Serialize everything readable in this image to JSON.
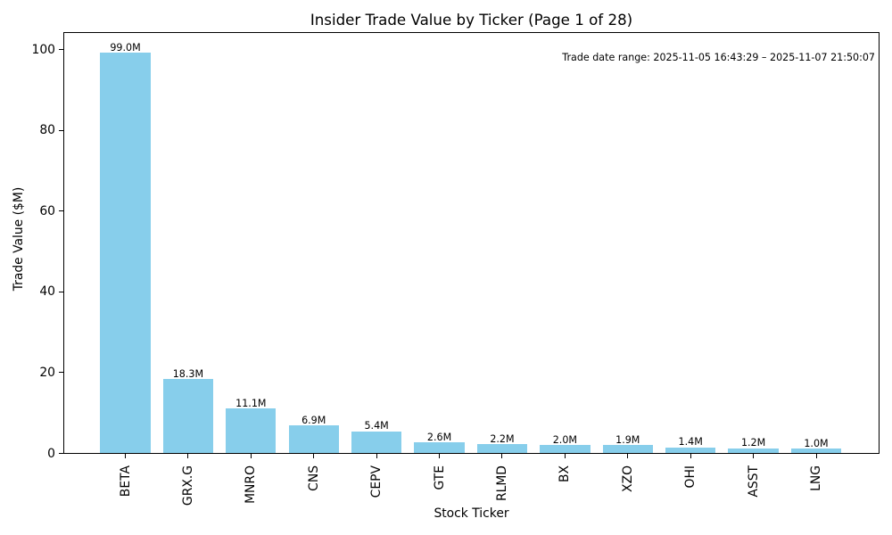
{
  "chart_data": {
    "type": "bar",
    "title": "Insider Trade Value by Ticker (Page 1 of 28)",
    "annotation": "Trade date range: 2025-11-05 16:43:29 – 2025-11-07 21:50:07",
    "xlabel": "Stock Ticker",
    "ylabel": "Trade Value ($M)",
    "categories": [
      "BETA",
      "GRX.G",
      "MNRO",
      "CNS",
      "CEPV",
      "GTE",
      "RLMD",
      "BX",
      "XZO",
      "OHI",
      "ASST",
      "LNG"
    ],
    "values": [
      99.0,
      18.3,
      11.1,
      6.9,
      5.4,
      2.6,
      2.2,
      2.0,
      1.9,
      1.4,
      1.2,
      1.0
    ],
    "bar_labels": [
      "99.0M",
      "18.3M",
      "11.1M",
      "6.9M",
      "5.4M",
      "2.6M",
      "2.2M",
      "2.0M",
      "1.9M",
      "1.4M",
      "1.2M",
      "1.0M"
    ],
    "yticks": [
      0,
      20,
      40,
      60,
      80,
      100
    ],
    "ylim": [
      0,
      103.95
    ],
    "grid": false,
    "legend_position": "none",
    "bar_color": "#87CEEB",
    "text_color": "#000000",
    "background_color": "#FFFFFF"
  }
}
